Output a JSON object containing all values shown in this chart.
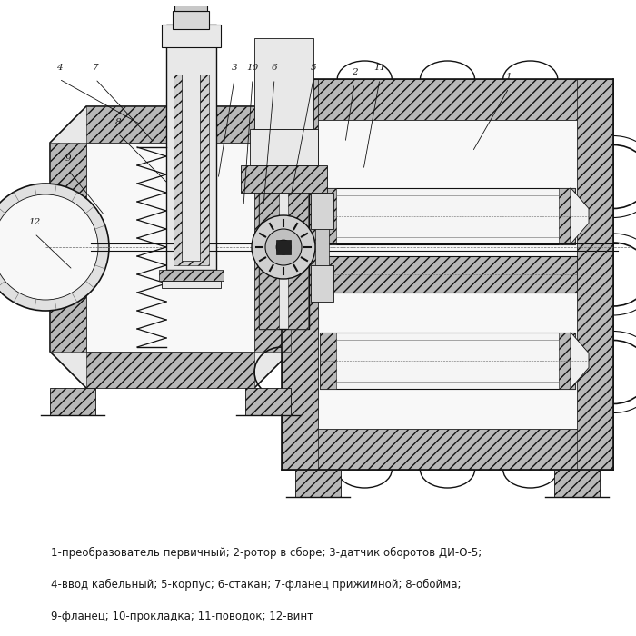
{
  "background_color": "#ffffff",
  "caption_lines": [
    "1-преобразователь первичный; 2-ротор в сборе; 3-датчик оборотов ДИ-О-5;",
    "4-ввод кабельный; 5-корпус; 6-стакан; 7-фланец прижимной; 8-обойма;",
    "9-фланец; 10-прокладка; 11-поводок; 12-винт"
  ],
  "caption_fontsize": 8.5,
  "fig_width": 7.0,
  "fig_height": 7.0,
  "dpi": 100,
  "text_color": "#1a1a1a",
  "dark": "#111111",
  "mid": "#666666",
  "hatch_fc": "#b8b8b8",
  "light_fc": "#e8e8e8",
  "white_fc": "#f8f8f8"
}
